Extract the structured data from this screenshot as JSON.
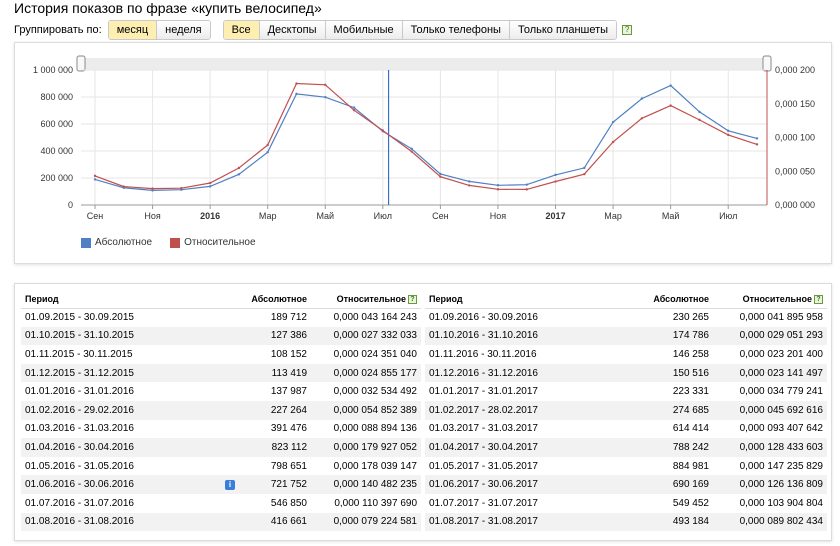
{
  "page": {
    "title": "История показов по фразе «купить велосипед»"
  },
  "grouping": {
    "label": "Группировать по:",
    "periods": [
      {
        "label": "месяц",
        "active": true
      },
      {
        "label": "неделя",
        "active": false
      }
    ],
    "devices": [
      {
        "label": "Все",
        "active": true
      },
      {
        "label": "Десктопы",
        "active": false
      },
      {
        "label": "Мобильные",
        "active": false
      },
      {
        "label": "Только телефоны",
        "active": false
      },
      {
        "label": "Только планшеты",
        "active": false
      }
    ],
    "help": "?"
  },
  "colors": {
    "absolute": "#4f7fc4",
    "relative": "#c0504d",
    "marker": "#3c6fc8",
    "grid": "#e6e6e6",
    "slider": "#ececec"
  },
  "chart_data": {
    "type": "line",
    "x_tick_labels": [
      "Сен",
      "Ноя",
      "2016",
      "Мар",
      "Май",
      "Июл",
      "Сен",
      "Ноя",
      "2017",
      "Мар",
      "Май",
      "Июл"
    ],
    "y_left_ticks": [
      "1 000 000",
      "800 000",
      "600 000",
      "400 000",
      "200 000",
      "0"
    ],
    "y_right_ticks": [
      "0,000 200",
      "0,000 150",
      "0,000 100",
      "0,000 050",
      "0,000 000"
    ],
    "y_left_range": [
      0,
      1000000
    ],
    "y_right_range": [
      0,
      0.0002
    ],
    "marker_index": 4.5,
    "series": [
      {
        "name": "Абсолютное",
        "axis": "left",
        "values": [
          189712,
          127386,
          108152,
          113419,
          137987,
          227264,
          391476,
          823112,
          798651,
          721752,
          546850,
          416661,
          230265,
          174786,
          146258,
          150516,
          223331,
          274685,
          614414,
          788242,
          884981,
          690169,
          549452,
          493184
        ]
      },
      {
        "name": "Относительное",
        "axis": "right",
        "values": [
          4.3164243e-05,
          2.7332033e-05,
          2.435104e-05,
          2.4855177e-05,
          3.2534492e-05,
          5.4852389e-05,
          8.8894136e-05,
          0.000179927052,
          0.000178039147,
          0.000140482235,
          0.00011039769,
          7.9224581e-05,
          4.1895958e-05,
          2.9051293e-05,
          2.32014e-05,
          2.3141497e-05,
          3.4779241e-05,
          4.5692616e-05,
          9.3407642e-05,
          0.000128433603,
          0.000147235829,
          0.000126136809,
          0.000103904804,
          8.9802434e-05
        ]
      }
    ],
    "legend": [
      "Абсолютное",
      "Относительное"
    ]
  },
  "table": {
    "headers": {
      "period": "Период",
      "absolute": "Абсолютное",
      "relative": "Относительное",
      "help": "?"
    },
    "left": [
      {
        "period": "01.09.2015 - 30.09.2015",
        "absolute": "189 712",
        "relative": "0,000 043 164 243"
      },
      {
        "period": "01.10.2015 - 31.10.2015",
        "absolute": "127 386",
        "relative": "0,000 027 332 033"
      },
      {
        "period": "01.11.2015 - 30.11.2015",
        "absolute": "108 152",
        "relative": "0,000 024 351 040"
      },
      {
        "period": "01.12.2015 - 31.12.2015",
        "absolute": "113 419",
        "relative": "0,000 024 855 177"
      },
      {
        "period": "01.01.2016 - 31.01.2016",
        "absolute": "137 987",
        "relative": "0,000 032 534 492"
      },
      {
        "period": "01.02.2016 - 29.02.2016",
        "absolute": "227 264",
        "relative": "0,000 054 852 389"
      },
      {
        "period": "01.03.2016 - 31.03.2016",
        "absolute": "391 476",
        "relative": "0,000 088 894 136"
      },
      {
        "period": "01.04.2016 - 30.04.2016",
        "absolute": "823 112",
        "relative": "0,000 179 927 052"
      },
      {
        "period": "01.05.2016 - 31.05.2016",
        "absolute": "798 651",
        "relative": "0,000 178 039 147"
      },
      {
        "period": "01.06.2016 - 30.06.2016",
        "absolute": "721 752",
        "relative": "0,000 140 482 235",
        "info": "i"
      },
      {
        "period": "01.07.2016 - 31.07.2016",
        "absolute": "546 850",
        "relative": "0,000 110 397 690"
      },
      {
        "period": "01.08.2016 - 31.08.2016",
        "absolute": "416 661",
        "relative": "0,000 079 224 581"
      }
    ],
    "right": [
      {
        "period": "01.09.2016 - 30.09.2016",
        "absolute": "230 265",
        "relative": "0,000 041 895 958"
      },
      {
        "period": "01.10.2016 - 31.10.2016",
        "absolute": "174 786",
        "relative": "0,000 029 051 293"
      },
      {
        "period": "01.11.2016 - 30.11.2016",
        "absolute": "146 258",
        "relative": "0,000 023 201 400"
      },
      {
        "period": "01.12.2016 - 31.12.2016",
        "absolute": "150 516",
        "relative": "0,000 023 141 497"
      },
      {
        "period": "01.01.2017 - 31.01.2017",
        "absolute": "223 331",
        "relative": "0,000 034 779 241"
      },
      {
        "period": "01.02.2017 - 28.02.2017",
        "absolute": "274 685",
        "relative": "0,000 045 692 616"
      },
      {
        "period": "01.03.2017 - 31.03.2017",
        "absolute": "614 414",
        "relative": "0,000 093 407 642"
      },
      {
        "period": "01.04.2017 - 30.04.2017",
        "absolute": "788 242",
        "relative": "0,000 128 433 603"
      },
      {
        "period": "01.05.2017 - 31.05.2017",
        "absolute": "884 981",
        "relative": "0,000 147 235 829"
      },
      {
        "period": "01.06.2017 - 30.06.2017",
        "absolute": "690 169",
        "relative": "0,000 126 136 809"
      },
      {
        "period": "01.07.2017 - 31.07.2017",
        "absolute": "549 452",
        "relative": "0,000 103 904 804"
      },
      {
        "period": "01.08.2017 - 31.08.2017",
        "absolute": "493 184",
        "relative": "0,000 089 802 434"
      }
    ]
  }
}
